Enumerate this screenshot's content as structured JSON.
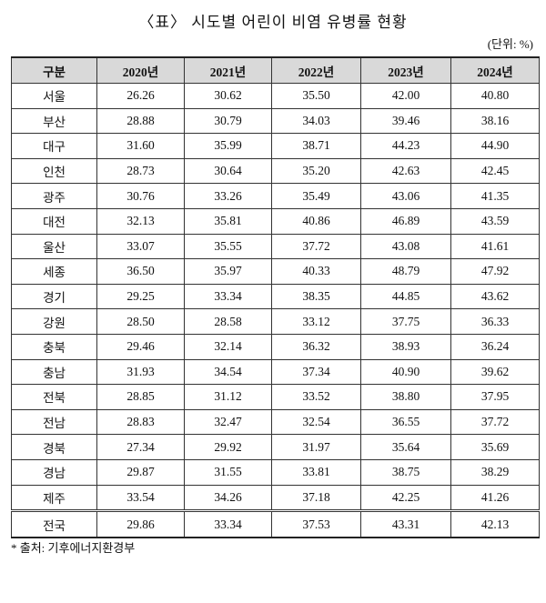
{
  "title": "〈표〉 시도별 어린이 비염 유병률 현황",
  "unit": "(단위: %)",
  "table": {
    "header": [
      "구분",
      "2020년",
      "2021년",
      "2022년",
      "2023년",
      "2024년"
    ],
    "rows": [
      [
        "서울",
        "26.26",
        "30.62",
        "35.50",
        "42.00",
        "40.80"
      ],
      [
        "부산",
        "28.88",
        "30.79",
        "34.03",
        "39.46",
        "38.16"
      ],
      [
        "대구",
        "31.60",
        "35.99",
        "38.71",
        "44.23",
        "44.90"
      ],
      [
        "인천",
        "28.73",
        "30.64",
        "35.20",
        "42.63",
        "42.45"
      ],
      [
        "광주",
        "30.76",
        "33.26",
        "35.49",
        "43.06",
        "41.35"
      ],
      [
        "대전",
        "32.13",
        "35.81",
        "40.86",
        "46.89",
        "43.59"
      ],
      [
        "울산",
        "33.07",
        "35.55",
        "37.72",
        "43.08",
        "41.61"
      ],
      [
        "세종",
        "36.50",
        "35.97",
        "40.33",
        "48.79",
        "47.92"
      ],
      [
        "경기",
        "29.25",
        "33.34",
        "38.35",
        "44.85",
        "43.62"
      ],
      [
        "강원",
        "28.50",
        "28.58",
        "33.12",
        "37.75",
        "36.33"
      ],
      [
        "충북",
        "29.46",
        "32.14",
        "36.32",
        "38.93",
        "36.24"
      ],
      [
        "충남",
        "31.93",
        "34.54",
        "37.34",
        "40.90",
        "39.62"
      ],
      [
        "전북",
        "28.85",
        "31.12",
        "33.52",
        "38.80",
        "37.95"
      ],
      [
        "전남",
        "28.83",
        "32.47",
        "32.54",
        "36.55",
        "37.72"
      ],
      [
        "경북",
        "27.34",
        "29.92",
        "31.97",
        "35.64",
        "35.69"
      ],
      [
        "경남",
        "29.87",
        "31.55",
        "33.81",
        "38.75",
        "38.29"
      ],
      [
        "제주",
        "33.54",
        "34.26",
        "37.18",
        "42.25",
        "41.26"
      ]
    ],
    "total": [
      "전국",
      "29.86",
      "33.34",
      "37.53",
      "43.31",
      "42.13"
    ]
  },
  "source": "* 출처: 기후에너지환경부"
}
